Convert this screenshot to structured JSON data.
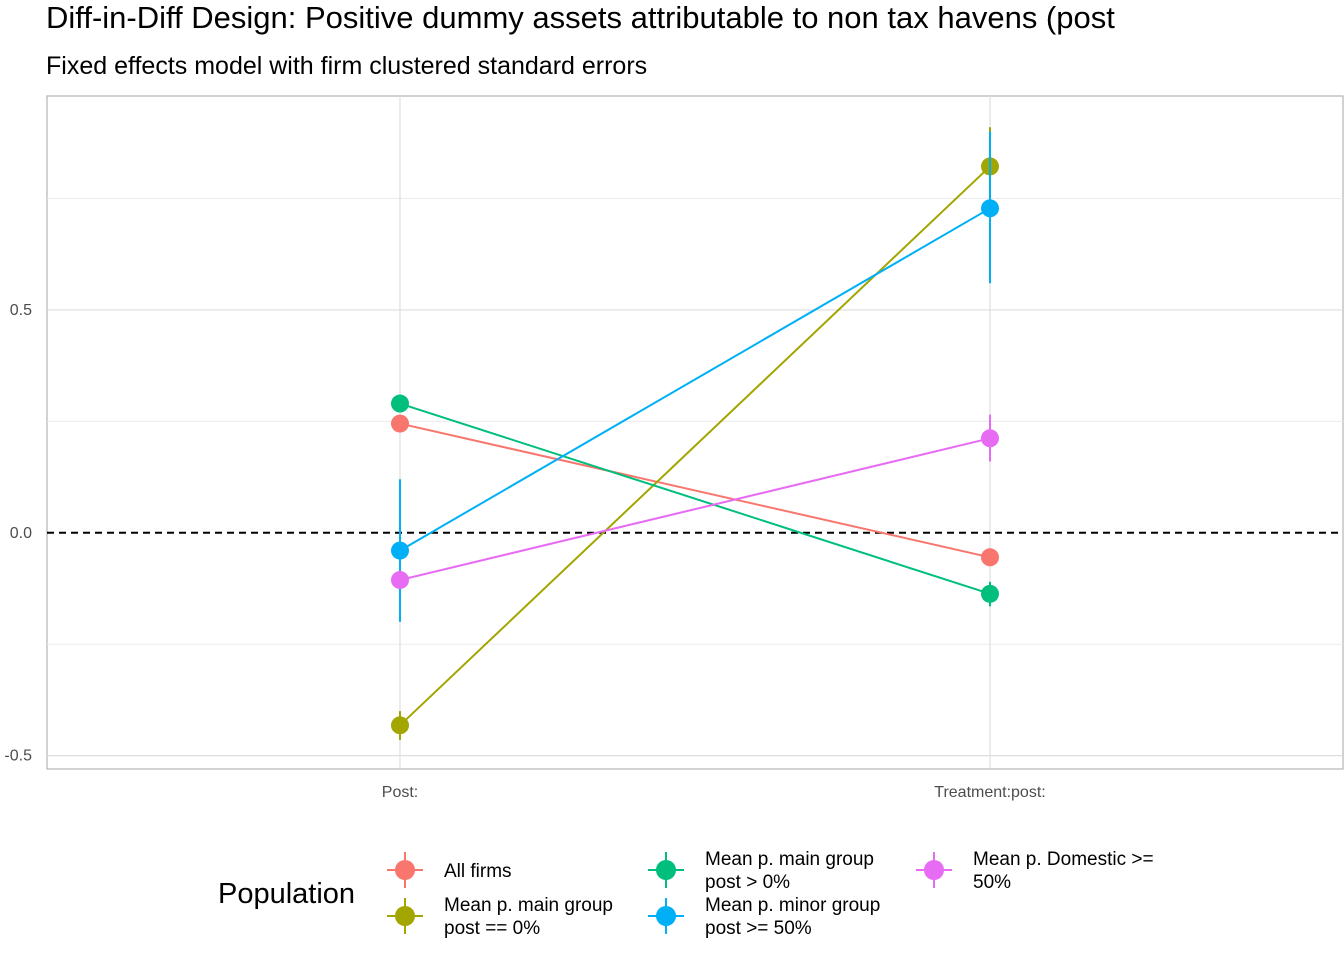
{
  "chart_data": {
    "type": "scatter",
    "title": "Diff-in-Diff Design: Positive dummy assets attributable to non tax havens (post",
    "subtitle": "Fixed effects model with firm clustered standard errors",
    "categories": [
      "Post:",
      "Treatment:post:"
    ],
    "y_ticks": [
      "-0.5",
      "0.0",
      "0.5"
    ],
    "y_tick_values": [
      -0.5,
      0.0,
      0.5
    ],
    "ylim": [
      -0.53,
      0.98
    ],
    "reference_line": 0.0,
    "grid": true,
    "legend_title": "Population",
    "legend_position": "bottom",
    "series": [
      {
        "name": "All firms",
        "color": "#F8766D",
        "values": [
          0.245,
          -0.055
        ],
        "lower": [
          0.235,
          -0.075
        ],
        "upper": [
          0.255,
          -0.035
        ]
      },
      {
        "name": "Mean p. main group post == 0%",
        "label_lines": [
          "Mean p. main group",
          "post == 0%"
        ],
        "color": "#A3A500",
        "values": [
          -0.432,
          0.822
        ],
        "lower": [
          -0.465,
          0.74
        ],
        "upper": [
          -0.4,
          0.91
        ]
      },
      {
        "name": "Mean p. main group post > 0%",
        "label_lines": [
          "Mean p. main group",
          "post > 0%"
        ],
        "color": "#00BF7D",
        "values": [
          0.29,
          -0.137
        ],
        "lower": [
          0.28,
          -0.165
        ],
        "upper": [
          0.3,
          -0.11
        ]
      },
      {
        "name": "Mean p. minor group post >= 50%",
        "label_lines": [
          "Mean p. minor group",
          "post >= 50%"
        ],
        "color": "#00B0F6",
        "values": [
          -0.04,
          0.728
        ],
        "lower": [
          -0.2,
          0.56
        ],
        "upper": [
          0.12,
          0.9
        ]
      },
      {
        "name": "Mean p. Domestic >= 50%",
        "label_lines": [
          "Mean p. Domestic >=",
          "50%"
        ],
        "color": "#E76BF3",
        "values": [
          -0.106,
          0.212
        ],
        "lower": [
          -0.125,
          0.16
        ],
        "upper": [
          -0.085,
          0.265
        ]
      }
    ]
  }
}
